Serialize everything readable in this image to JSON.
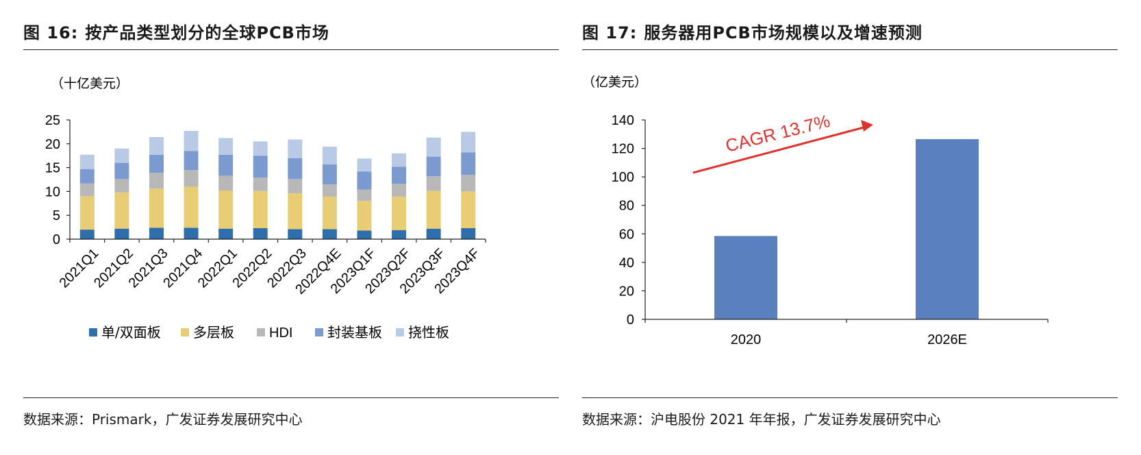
{
  "colors": {
    "single_double": "#2f6ead",
    "multilayer": "#e8cd74",
    "hdi": "#b8b8b8",
    "substrate": "#7b9ad0",
    "flex": "#b8cae6",
    "server_bar": "#5a81bd",
    "cagr": "#e0322d"
  },
  "left": {
    "fig_label": "图 16:",
    "title": "按产品类型划分的全球PCB市场",
    "source": "数据来源：Prismark，广发证券发展研究中心"
  },
  "right": {
    "fig_label": "图 17:",
    "title": "服务器用PCB市场规模以及增速预测",
    "source": "数据来源：沪电股份 2021 年年报，广发证券发展研究中心"
  },
  "chart_data": [
    {
      "type": "bar",
      "stacked": true,
      "unit": "（十亿美元）",
      "categories": [
        "2021Q1",
        "2021Q2",
        "2021Q3",
        "2021Q4",
        "2022Q1",
        "2022Q2",
        "2022Q3",
        "2022Q4E",
        "2023Q1F",
        "2023Q2F",
        "2023Q3F",
        "2023Q4F"
      ],
      "series": [
        {
          "name": "单/双面板",
          "color_key": "single_double",
          "values": [
            2.0,
            2.2,
            2.4,
            2.4,
            2.2,
            2.3,
            2.1,
            2.1,
            1.8,
            1.9,
            2.2,
            2.3
          ]
        },
        {
          "name": "多层板",
          "color_key": "multilayer",
          "values": [
            7.0,
            7.6,
            8.2,
            8.6,
            8.0,
            7.8,
            7.5,
            6.8,
            6.2,
            7.0,
            7.9,
            7.7
          ]
        },
        {
          "name": "HDI",
          "color_key": "hdi",
          "values": [
            2.7,
            2.8,
            3.3,
            3.5,
            3.1,
            2.8,
            3.0,
            2.6,
            2.4,
            2.7,
            3.1,
            3.5
          ]
        },
        {
          "name": "封装基板",
          "color_key": "substrate",
          "values": [
            3.0,
            3.4,
            3.8,
            4.0,
            4.4,
            4.6,
            4.4,
            4.2,
            3.8,
            3.6,
            4.1,
            4.7
          ]
        },
        {
          "name": "挠性板",
          "color_key": "flex",
          "values": [
            3.0,
            3.0,
            3.7,
            4.2,
            3.5,
            3.0,
            3.9,
            3.7,
            2.7,
            2.8,
            4.0,
            4.3
          ]
        }
      ],
      "ylim": [
        0,
        25
      ],
      "yticks": [
        0,
        5,
        10,
        15,
        20,
        25
      ],
      "legend": "bottom",
      "grid": false
    },
    {
      "type": "bar",
      "unit": "（亿美元）",
      "categories": [
        "2020",
        "2026E"
      ],
      "series": [
        {
          "color_key": "server_bar",
          "values": [
            58.5,
            126.5
          ]
        }
      ],
      "ylim": [
        0,
        140
      ],
      "yticks": [
        0,
        20,
        40,
        60,
        80,
        100,
        120,
        140
      ],
      "annotation": "CAGR 13.7%",
      "legend": "none",
      "grid": false
    }
  ]
}
